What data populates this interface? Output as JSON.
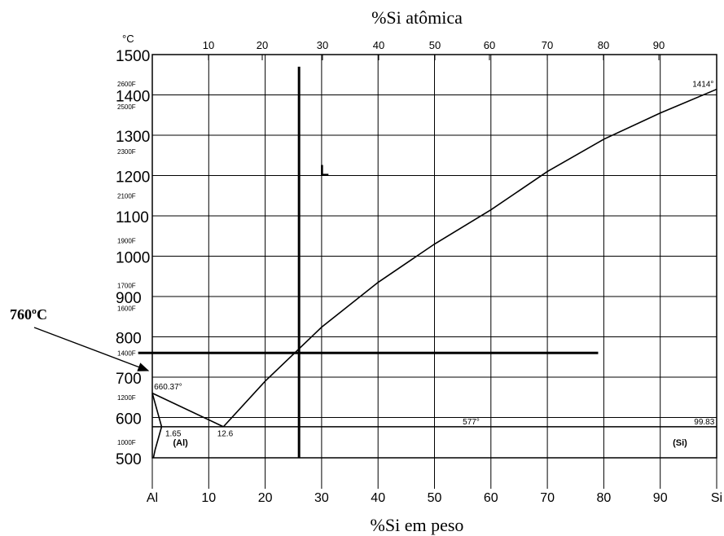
{
  "chart_data": {
    "type": "line",
    "title": "%Si atômica",
    "xlabel": "%Si em peso",
    "ylabel": "°C",
    "x_axis_bottom": {
      "tick_labels": [
        "Al",
        "10",
        "20",
        "30",
        "40",
        "50",
        "60",
        "70",
        "80",
        "90",
        "Si"
      ],
      "values": [
        0,
        10,
        20,
        30,
        40,
        50,
        60,
        70,
        80,
        90,
        100
      ],
      "range": [
        0,
        100
      ]
    },
    "x_axis_top": {
      "tick_labels": [
        "10",
        "20",
        "30",
        "40",
        "50",
        "60",
        "70",
        "80",
        "90"
      ]
    },
    "y_axis": {
      "unit_label": "°C",
      "tick_labels": [
        "1500",
        "1400",
        "1300",
        "1200",
        "1100",
        "1000",
        "900",
        "800",
        "700",
        "600",
        "500"
      ],
      "values": [
        1500,
        1400,
        1300,
        1200,
        1100,
        1000,
        900,
        800,
        700,
        600,
        500
      ],
      "range": [
        500,
        1500
      ],
      "fahrenheit_labels": [
        {
          "text": "2600F",
          "temp_c": 1427
        },
        {
          "text": "2500F",
          "temp_c": 1371
        },
        {
          "text": "2300F",
          "temp_c": 1260
        },
        {
          "text": "2100F",
          "temp_c": 1149
        },
        {
          "text": "1900F",
          "temp_c": 1038
        },
        {
          "text": "1700F",
          "temp_c": 927
        },
        {
          "text": "1600F",
          "temp_c": 871
        },
        {
          "text": "1400F",
          "temp_c": 760
        },
        {
          "text": "1200F",
          "temp_c": 649
        },
        {
          "text": "1000F",
          "temp_c": 538
        }
      ]
    },
    "grid": true,
    "series": [
      {
        "role": "liquidus-al-side",
        "points": [
          [
            0,
            660.37
          ],
          [
            12.6,
            577
          ]
        ]
      },
      {
        "role": "liquidus-si-side",
        "points": [
          [
            12.6,
            577
          ],
          [
            20,
            690
          ],
          [
            30,
            824
          ],
          [
            40,
            935
          ],
          [
            50,
            1030
          ],
          [
            60,
            1115
          ],
          [
            70,
            1210
          ],
          [
            80,
            1290
          ],
          [
            90,
            1355
          ],
          [
            100,
            1414
          ]
        ]
      },
      {
        "role": "eutectic-isotherm",
        "points": [
          [
            0,
            577
          ],
          [
            100,
            577
          ]
        ]
      },
      {
        "role": "al-solvus",
        "points": [
          [
            1.65,
            577
          ],
          [
            0.5,
            520
          ],
          [
            0.2,
            500
          ]
        ]
      },
      {
        "role": "al-solidus",
        "points": [
          [
            0,
            660.37
          ],
          [
            1.65,
            577
          ]
        ]
      }
    ],
    "guide_lines": [
      {
        "role": "vertical-composition-line",
        "points": [
          [
            26,
            500
          ],
          [
            26,
            1470
          ]
        ]
      },
      {
        "role": "horizontal-760c-line",
        "points": [
          [
            -2.5,
            760
          ],
          [
            79,
            760
          ]
        ]
      }
    ],
    "phase_labels": [
      {
        "text": "L",
        "x": 30.5,
        "y": 1200
      },
      {
        "text": "(Al)",
        "x": 5,
        "y": 530
      },
      {
        "text": "(Si)",
        "x": 93.5,
        "y": 530
      }
    ],
    "annotations": [
      {
        "text": "660.37°",
        "x": 0.3,
        "y": 670
      },
      {
        "text": "1.65",
        "x": 2.3,
        "y": 554
      },
      {
        "text": "12.6",
        "x": 11.5,
        "y": 554
      },
      {
        "text": "577°",
        "x": 55,
        "y": 583
      },
      {
        "text": "99.83",
        "x": 96,
        "y": 583
      },
      {
        "text": "1414°",
        "x": 95.7,
        "y": 1420
      }
    ],
    "callout": {
      "text": "760ºC",
      "target_x": -1,
      "target_y": 760
    }
  }
}
